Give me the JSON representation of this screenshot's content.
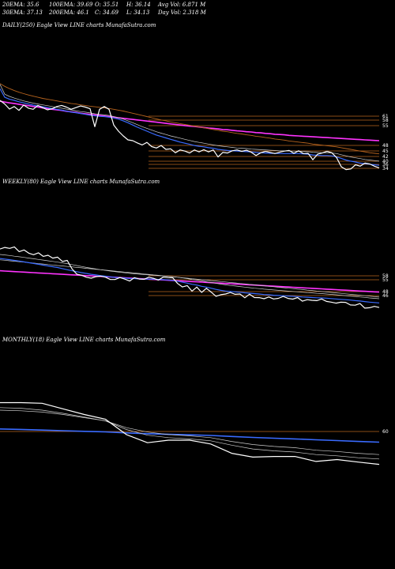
{
  "header": {
    "ema20": "20EMA: 35.6",
    "ema100": "100EMA: 39.69",
    "open": "O: 35.51",
    "high": "H: 36.14",
    "avg_vol": "Avg Vol: 6.871 M",
    "ema30": "30EMA: 37.13",
    "ema200": "200EMA: 46.1",
    "close": "C: 34.69",
    "low": "L: 34.13",
    "day_vol": "Day Vol: 2.318 M"
  },
  "colors": {
    "background": "#000000",
    "price": "#ffffff",
    "ema_short": "#3a6bff",
    "ema_long": "#ff33ff",
    "ema_orange": "#b8641e",
    "level_line": "#b8641e",
    "ema_grey": "#cfcfcf"
  },
  "chart_data": [
    {
      "type": "line",
      "title": "DAILY(250) Eagle  View  LINE charts MunafaSutra.com",
      "ytick_labels": [
        "61",
        "58",
        "55",
        "48",
        "45",
        "42",
        "40",
        "36",
        "34"
      ],
      "series": [
        {
          "values": [
            58.8,
            57.5,
            55.7,
            56.6,
            55.2,
            57.1,
            56.0,
            55.6,
            57.0,
            56.2,
            55.4,
            55.8,
            56.6,
            57.0,
            56.4,
            55.6,
            56.2,
            56.8,
            56.4,
            55.8,
            49.4,
            55.6,
            56.6,
            55.6,
            50.0,
            47.8,
            46.1,
            44.7,
            44.4,
            43.6,
            42.9,
            43.8,
            42.3,
            41.8,
            42.7,
            41.3,
            41.5,
            40.1,
            41.1,
            40.7,
            40.0,
            41.1,
            40.4,
            41.2,
            40.4,
            41.1,
            38.6,
            40.2,
            40.0,
            40.8,
            41.1,
            40.6,
            41.0,
            40.3,
            39.1,
            40.1,
            40.6,
            40.2,
            39.8,
            40.3,
            40.7,
            40.9,
            39.9,
            40.8,
            39.8,
            39.9,
            37.6,
            39.6,
            40.0,
            40.6,
            40.1,
            38.4,
            35.1,
            34.1,
            34.3,
            35.8,
            35.3,
            36.4,
            36.1,
            35.3,
            34.7
          ]
        },
        {
          "values": [
            63.0,
            59.9,
            59.2,
            58.8,
            58.3,
            57.9,
            57.5,
            57.1,
            56.8,
            56.5,
            56.2,
            55.9,
            55.6,
            55.3,
            55.0,
            54.6,
            54.4,
            54.1,
            53.8,
            53.5,
            53.3,
            53.1,
            53.0,
            52.8,
            52.5,
            52.1,
            51.5,
            50.8,
            50.0,
            49.2,
            48.5,
            47.8,
            47.1,
            46.4,
            45.9,
            45.4,
            44.9,
            44.4,
            43.9,
            43.5,
            43.1,
            42.7,
            42.4,
            42.2,
            41.9,
            41.7,
            41.3,
            41.1,
            40.9,
            40.8,
            40.7,
            40.6,
            40.5,
            40.4,
            40.2,
            40.1,
            40.0,
            39.9,
            39.9,
            39.8,
            39.8,
            39.8,
            39.8,
            39.8,
            39.7,
            39.6,
            39.3,
            39.2,
            39.1,
            39.1,
            39.0,
            38.6,
            38.1,
            37.5,
            37.1,
            36.8,
            36.4,
            36.2,
            36.0,
            35.8,
            35.6
          ]
        },
        {
          "values": [
            64.5,
            61.0,
            60.2,
            59.6,
            59.1,
            58.6,
            58.2,
            57.8,
            57.5,
            57.2,
            56.9,
            56.6,
            56.3,
            56.0,
            55.7,
            55.4,
            55.1,
            54.8,
            54.6,
            54.3,
            54.0,
            53.8,
            53.6,
            53.4,
            53.0,
            52.6,
            52.1,
            51.5,
            50.8,
            50.1,
            49.4,
            48.8,
            48.2,
            47.6,
            47.1,
            46.6,
            46.1,
            45.7,
            45.3,
            44.9,
            44.5,
            44.1,
            43.8,
            43.5,
            43.2,
            42.9,
            42.6,
            42.4,
            42.2,
            42.0,
            41.8,
            41.7,
            41.6,
            41.4,
            41.3,
            41.2,
            41.1,
            41.0,
            40.9,
            40.8,
            40.8,
            40.7,
            40.7,
            40.6,
            40.6,
            40.5,
            40.3,
            40.2,
            40.1,
            40.1,
            40.0,
            39.8,
            39.4,
            39.0,
            38.6,
            38.3,
            38.0,
            37.7,
            37.5,
            37.3,
            37.1
          ]
        },
        {
          "values": [
            64.8,
            63.8,
            63.0,
            62.3,
            61.7,
            61.2,
            60.7,
            60.3,
            59.9,
            59.5,
            59.2,
            58.9,
            58.6,
            58.3,
            58.0,
            57.7,
            57.5,
            57.2,
            57.0,
            56.7,
            56.5,
            56.3,
            56.1,
            55.9,
            55.6,
            55.3,
            55.0,
            54.6,
            54.2,
            53.8,
            53.4,
            53.0,
            52.6,
            52.2,
            51.8,
            51.5,
            51.1,
            50.8,
            50.5,
            50.2,
            49.9,
            49.6,
            49.3,
            49.0,
            48.7,
            48.4,
            48.1,
            47.8,
            47.6,
            47.3,
            47.0,
            46.8,
            46.5,
            46.3,
            46.0,
            45.8,
            45.5,
            45.3,
            45.0,
            44.8,
            44.6,
            44.3,
            44.1,
            43.9,
            43.7,
            43.5,
            43.2,
            43.0,
            42.8,
            42.6,
            42.4,
            42.2,
            41.9,
            41.6,
            41.3,
            41.0,
            40.7,
            40.4,
            40.1,
            39.9,
            39.7
          ]
        },
        {
          "values": [
            58.5,
            58.2,
            57.9,
            57.7,
            57.4,
            57.1,
            56.9,
            56.6,
            56.4,
            56.1,
            55.9,
            55.6,
            55.4,
            55.2,
            54.9,
            54.7,
            54.5,
            54.2,
            54.0,
            53.8,
            53.6,
            53.4,
            53.2,
            53.0,
            52.8,
            52.6,
            52.4,
            52.2,
            52.0,
            51.8,
            51.6,
            51.4,
            51.2,
            51.0,
            50.8,
            50.6,
            50.4,
            50.2,
            50.0,
            49.8,
            49.6,
            49.5,
            49.3,
            49.1,
            48.9,
            48.8,
            48.6,
            48.4,
            48.3,
            48.1,
            47.9,
            47.8,
            47.6,
            47.5,
            47.3,
            47.2,
            47.0,
            46.9,
            46.7,
            46.6,
            46.5,
            46.3,
            46.2,
            46.1,
            46.0,
            45.9,
            45.8,
            45.7,
            45.6,
            45.5,
            45.4,
            45.3,
            45.2,
            45.1,
            45.0,
            44.9,
            44.8,
            44.7,
            44.6,
            44.5,
            44.4
          ]
        }
      ]
    },
    {
      "type": "line",
      "title": "WEEKLY(80) Eagle  View  LINE charts MunafaSutra.com",
      "ytick_labels": [
        "58",
        "55",
        "48",
        "46"
      ],
      "series": [
        {
          "values": [
            78.0,
            79.2,
            78.5,
            79.6,
            76.1,
            77.3,
            74.9,
            73.8,
            75.2,
            72.6,
            73.4,
            71.3,
            72.0,
            68.8,
            69.6,
            63.4,
            59.4,
            58.6,
            57.1,
            56.4,
            57.5,
            58.0,
            57.1,
            55.4,
            55.5,
            56.9,
            55.7,
            54.3,
            56.8,
            55.8,
            55.6,
            57.1,
            56.3,
            55.0,
            57.2,
            56.8,
            56.7,
            52.5,
            49.9,
            50.9,
            46.8,
            49.8,
            45.9,
            48.9,
            46.1,
            43.0,
            44.2,
            44.7,
            45.8,
            44.5,
            44.7,
            41.9,
            44.6,
            42.1,
            42.0,
            41.2,
            42.5,
            41.0,
            41.5,
            42.9,
            41.4,
            40.9,
            42.1,
            39.4,
            40.5,
            40.0,
            39.8,
            41.0,
            39.2,
            38.7,
            37.9,
            38.6,
            38.5,
            36.6,
            36.4,
            37.6,
            34.2,
            34.5,
            35.5,
            34.7
          ]
        },
        {
          "values": [
            71.0,
            70.6,
            70.1,
            69.6,
            69.1,
            68.5,
            67.9,
            67.3,
            66.7,
            66.1,
            65.5,
            64.9,
            64.3,
            63.5,
            62.7,
            61.9,
            61.2,
            60.5,
            59.9,
            59.3,
            58.8,
            58.3,
            57.9,
            57.4,
            57.0,
            56.8,
            56.5,
            56.2,
            56.1,
            55.9,
            55.8,
            55.8,
            55.7,
            55.5,
            55.3,
            55.1,
            54.8,
            54.2,
            53.4,
            52.7,
            51.9,
            51.3,
            50.4,
            49.8,
            49.0,
            48.1,
            47.4,
            46.9,
            46.6,
            46.3,
            46.0,
            45.6,
            45.3,
            45.0,
            44.7,
            44.3,
            44.1,
            43.8,
            43.6,
            43.4,
            43.2,
            43.0,
            42.8,
            42.5,
            42.3,
            42.1,
            41.9,
            41.8,
            41.6,
            41.3,
            41.0,
            40.7,
            40.5,
            40.2,
            39.8,
            39.5,
            39.1,
            38.7,
            38.4,
            38.1
          ]
        },
        {
          "values": [
            74.0,
            73.6,
            73.2,
            72.7,
            72.3,
            71.8,
            71.3,
            70.8,
            70.3,
            69.8,
            69.3,
            68.8,
            68.3,
            67.8,
            67.2,
            66.5,
            65.8,
            65.1,
            64.4,
            63.8,
            63.2,
            62.7,
            62.2,
            61.7,
            61.2,
            60.8,
            60.4,
            60.0,
            59.7,
            59.4,
            59.1,
            58.8,
            58.6,
            58.3,
            58.1,
            57.8,
            57.5,
            57.1,
            56.6,
            56.1,
            55.5,
            55.0,
            54.4,
            53.8,
            53.2,
            52.6,
            52.0,
            51.5,
            51.0,
            50.6,
            50.2,
            49.8,
            49.4,
            49.0,
            48.7,
            48.3,
            48.0,
            47.7,
            47.4,
            47.1,
            46.8,
            46.6,
            46.3,
            46.0,
            45.7,
            45.5,
            45.2,
            45.0,
            44.7,
            44.4,
            44.1,
            43.8,
            43.5,
            43.2,
            42.9,
            42.5,
            42.2,
            41.8,
            41.5,
            41.2
          ]
        },
        {
          "values": [
            70.0,
            69.7,
            69.3,
            69.0,
            68.6,
            68.3,
            67.9,
            67.6,
            67.2,
            66.9,
            66.5,
            66.2,
            65.8,
            65.5,
            65.1,
            64.8,
            64.4,
            64.1,
            63.7,
            63.4,
            63.0,
            62.7,
            62.3,
            62.0,
            61.6,
            61.3,
            60.9,
            60.6,
            60.2,
            59.9,
            59.5,
            59.2,
            58.8,
            58.5,
            58.1,
            57.8,
            57.4,
            57.1,
            56.7,
            56.4,
            56.0,
            55.7,
            55.3,
            55.0,
            54.6,
            54.3,
            53.9,
            53.6,
            53.2,
            52.9,
            52.5,
            52.2,
            51.8,
            51.5,
            51.1,
            50.8,
            50.4,
            50.1,
            49.7,
            49.4,
            49.0,
            48.7,
            48.3,
            48.0,
            47.6,
            47.3,
            46.9,
            46.6,
            46.2,
            45.9,
            45.5,
            45.2,
            44.8,
            44.5,
            44.1,
            43.8,
            43.4,
            43.1,
            42.7,
            42.4
          ]
        },
        {
          "values": [
            61.9,
            61.7,
            61.5,
            61.3,
            61.1,
            60.9,
            60.7,
            60.5,
            60.3,
            60.1,
            59.9,
            59.7,
            59.5,
            59.3,
            59.1,
            58.9,
            58.7,
            58.5,
            58.3,
            58.1,
            57.9,
            57.7,
            57.5,
            57.3,
            57.1,
            56.9,
            56.7,
            56.5,
            56.3,
            56.1,
            55.9,
            55.7,
            55.5,
            55.3,
            55.1,
            54.9,
            54.7,
            54.5,
            54.3,
            54.1,
            53.9,
            53.7,
            53.5,
            53.3,
            53.1,
            52.9,
            52.7,
            52.5,
            52.3,
            52.1,
            51.9,
            51.7,
            51.5,
            51.3,
            51.1,
            50.9,
            50.7,
            50.5,
            50.3,
            50.1,
            49.9,
            49.7,
            49.5,
            49.3,
            49.1,
            48.9,
            48.7,
            48.5,
            48.3,
            48.1,
            47.9,
            47.7,
            47.5,
            47.3,
            47.1,
            46.9,
            46.7,
            46.5,
            46.3,
            46.1
          ]
        }
      ]
    },
    {
      "type": "line",
      "title": "MONTHLY(18) Eagle  View  LINE charts MunafaSutra.com",
      "ytick_labels": [
        "60"
      ],
      "series": [
        {
          "values": [
            84.0,
            84.0,
            83.5,
            79.0,
            74.5,
            70.8,
            58.5,
            52.0,
            54.0,
            54.0,
            51.0,
            43.5,
            40.5,
            41.0,
            41.0,
            37.0,
            38.5,
            36.5,
            34.7
          ]
        },
        {
          "values": [
            80.0,
            79.5,
            78.0,
            75.5,
            72.5,
            69.5,
            62.5,
            58.0,
            56.0,
            55.0,
            53.5,
            50.0,
            47.0,
            45.5,
            44.5,
            42.5,
            41.5,
            40.0,
            39.0
          ]
        },
        {
          "values": [
            78.0,
            77.5,
            76.5,
            74.5,
            72.0,
            69.5,
            64.0,
            60.5,
            58.5,
            57.5,
            56.0,
            53.0,
            50.5,
            49.0,
            48.0,
            46.0,
            45.0,
            43.5,
            42.5
          ]
        },
        {
          "values": [
            63.0,
            62.6,
            62.1,
            61.6,
            61.1,
            60.6,
            59.8,
            59.2,
            58.7,
            58.3,
            57.8,
            57.0,
            56.2,
            55.6,
            55.0,
            54.3,
            53.7,
            53.0,
            52.4
          ]
        }
      ]
    }
  ]
}
